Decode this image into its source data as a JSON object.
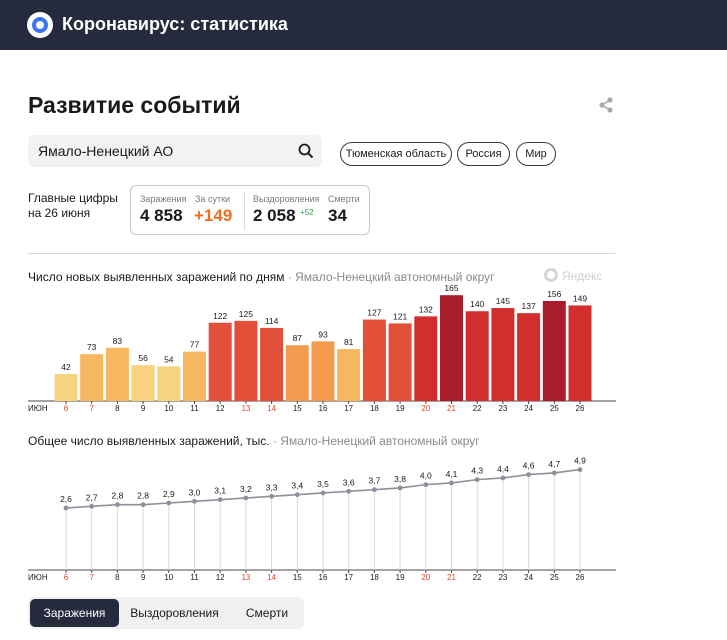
{
  "header": {
    "title": "Коронавирус: статистика"
  },
  "page": {
    "title": "Развитие событий"
  },
  "search": {
    "value": "Ямало-Ненецкий АО"
  },
  "regions": [
    "Тюменская область",
    "Россия",
    "Мир"
  ],
  "summary": {
    "label": "Главные цифры на 26 июня",
    "cases_label": "Заражения",
    "cases": "4 858",
    "day_label": "За сутки",
    "day": "+149",
    "recovered_label": "Выздоровления",
    "recovered": "2 058",
    "recovered_delta": "+52",
    "deaths_label": "Смерти",
    "deaths": "34"
  },
  "brand": {
    "watermark": "Яндекс"
  },
  "colors": {
    "header": "#262a3d",
    "accent_orange": "#f06f1e",
    "positive": "#2a9a45"
  },
  "chart_data": [
    {
      "type": "bar",
      "title": "Число новых выявленных заражений по дням",
      "subtitle": "Ямало-Ненецкий автономный округ",
      "month_label": "ИЮН",
      "categories": [
        "6",
        "7",
        "8",
        "9",
        "10",
        "11",
        "12",
        "13",
        "14",
        "15",
        "16",
        "17",
        "18",
        "19",
        "20",
        "21",
        "22",
        "23",
        "24",
        "25",
        "26"
      ],
      "weekend": [
        true,
        true,
        false,
        false,
        false,
        false,
        false,
        true,
        true,
        false,
        false,
        false,
        false,
        false,
        true,
        true,
        false,
        false,
        false,
        false,
        false
      ],
      "values": [
        42,
        73,
        83,
        56,
        54,
        77,
        122,
        125,
        114,
        87,
        93,
        81,
        127,
        121,
        132,
        165,
        140,
        145,
        137,
        156,
        149
      ],
      "ylim": [
        0,
        170
      ]
    },
    {
      "type": "line",
      "title": "Общее число выявленных заражений, тыс.",
      "subtitle": "Ямало-Ненецкий автономный округ",
      "month_label": "ИЮН",
      "categories": [
        "6",
        "7",
        "8",
        "9",
        "10",
        "11",
        "12",
        "13",
        "14",
        "15",
        "16",
        "17",
        "18",
        "19",
        "20",
        "21",
        "22",
        "23",
        "24",
        "25",
        "26"
      ],
      "weekend": [
        true,
        true,
        false,
        false,
        false,
        false,
        false,
        true,
        true,
        false,
        false,
        false,
        false,
        false,
        true,
        true,
        false,
        false,
        false,
        false,
        false
      ],
      "values": [
        2.6,
        2.7,
        2.8,
        2.8,
        2.9,
        3.0,
        3.1,
        3.2,
        3.3,
        3.4,
        3.5,
        3.6,
        3.7,
        3.8,
        4.0,
        4.1,
        4.3,
        4.4,
        4.6,
        4.7,
        4.9
      ],
      "labels": [
        "2,6",
        "2,7",
        "2,8",
        "2,8",
        "2,9",
        "3,0",
        "3,1",
        "3,2",
        "3,3",
        "3,4",
        "3,5",
        "3,6",
        "3,7",
        "3,8",
        "4,0",
        "4,1",
        "4,3",
        "4,4",
        "4,6",
        "4,7",
        "4,9"
      ]
    }
  ],
  "tabs": [
    "Заражения",
    "Выздоровления",
    "Смерти"
  ]
}
